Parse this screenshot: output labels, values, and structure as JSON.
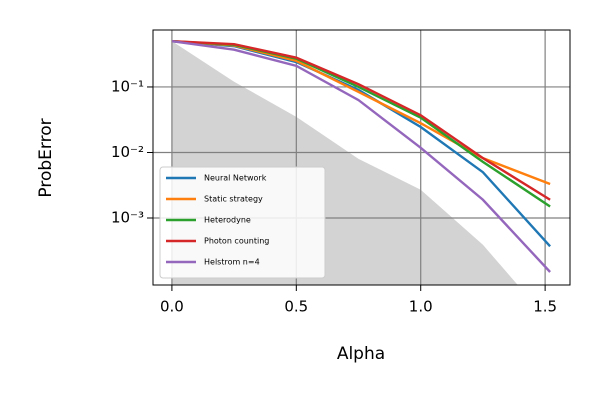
{
  "chart_data": {
    "type": "line",
    "x_label": "Alpha",
    "y_label": "ProbError",
    "x": [
      0,
      0.25,
      0.5,
      0.75,
      1.0,
      1.25,
      1.52
    ],
    "series": [
      {
        "name": "Neural Network",
        "color": "#1f77b4",
        "values": [
          0.5,
          0.42,
          0.24,
          0.09,
          0.0245,
          0.005,
          0.00037
        ]
      },
      {
        "name": "Static strategy",
        "color": "#ff7f0e",
        "values": [
          0.5,
          0.43,
          0.25,
          0.084,
          0.028,
          0.0082,
          0.0033
        ]
      },
      {
        "name": "Heterodyne",
        "color": "#2ca02c",
        "values": [
          0.5,
          0.44,
          0.27,
          0.1,
          0.034,
          0.0072,
          0.0015
        ]
      },
      {
        "name": "Photon counting",
        "color": "#d62728",
        "values": [
          0.5,
          0.45,
          0.28,
          0.11,
          0.037,
          0.0082,
          0.0019
        ]
      },
      {
        "name": "Helstrom n=4",
        "color": "#9467bd",
        "values": [
          0.5,
          0.37,
          0.21,
          0.063,
          0.0118,
          0.0019,
          0.00015
        ]
      }
    ],
    "shaded_region": {
      "color": "#d3d3d3",
      "x": [
        0,
        0.25,
        0.5,
        0.75,
        1.0,
        1.25,
        1.39
      ],
      "values": [
        0.5,
        0.12,
        0.035,
        0.008,
        0.0027,
        0.00039,
        9.5e-05
      ]
    },
    "xlim": [
      -0.076,
      1.6
    ],
    "ylim": [
      9.5e-05,
      0.74
    ],
    "log_y": true,
    "xticks": [
      {
        "value": 0,
        "label": "0.0"
      },
      0.5,
      {
        "value": 1,
        "label": "1.0"
      },
      1.5
    ],
    "yticks": [
      {
        "value": 0.1,
        "label": "10⁻¹"
      },
      {
        "value": 0.01,
        "label": "10⁻²"
      },
      {
        "value": 0.001,
        "label": "10⁻³"
      }
    ],
    "grid": true,
    "legend": "lower left"
  }
}
